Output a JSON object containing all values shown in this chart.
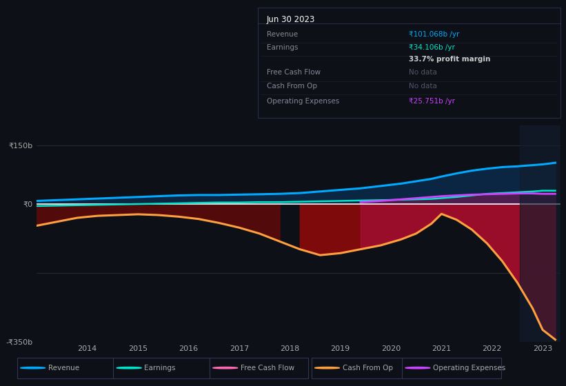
{
  "bg_color": "#0d1117",
  "plot_bg_color": "#0d1117",
  "ylim": [
    -350,
    200
  ],
  "ytick_positions": [
    -350,
    0,
    150
  ],
  "ytick_labels": [
    "-₹350b",
    "₹0",
    "₹150b"
  ],
  "x_years": [
    2013.0,
    2013.4,
    2013.8,
    2014.2,
    2014.6,
    2015.0,
    2015.4,
    2015.8,
    2016.2,
    2016.6,
    2017.0,
    2017.4,
    2017.8,
    2018.2,
    2018.6,
    2019.0,
    2019.4,
    2019.8,
    2020.2,
    2020.5,
    2020.8,
    2021.0,
    2021.3,
    2021.6,
    2021.9,
    2022.2,
    2022.5,
    2022.8,
    2023.0,
    2023.25
  ],
  "revenue": [
    8,
    10,
    12,
    14,
    16,
    18,
    20,
    22,
    23,
    23,
    24,
    25,
    26,
    28,
    32,
    36,
    40,
    46,
    52,
    58,
    64,
    70,
    78,
    85,
    90,
    94,
    96,
    99,
    101,
    105
  ],
  "earnings": [
    -5,
    -4,
    -3,
    -2,
    -1,
    0,
    1,
    2,
    3,
    4,
    4,
    5,
    5,
    6,
    7,
    8,
    9,
    10,
    11,
    12,
    13,
    15,
    18,
    22,
    26,
    28,
    30,
    32,
    34,
    34
  ],
  "cash_from_op": [
    -55,
    -45,
    -35,
    -30,
    -28,
    -26,
    -28,
    -32,
    -38,
    -48,
    -60,
    -75,
    -95,
    -115,
    -130,
    -125,
    -115,
    -105,
    -90,
    -75,
    -50,
    -25,
    -40,
    -65,
    -100,
    -145,
    -200,
    -265,
    -320,
    -345
  ],
  "operating_expenses": [
    null,
    null,
    null,
    null,
    null,
    null,
    null,
    null,
    null,
    null,
    null,
    null,
    null,
    null,
    null,
    null,
    5,
    8,
    12,
    15,
    18,
    20,
    22,
    24,
    25,
    26,
    27,
    27,
    26,
    26
  ],
  "free_cash_flow": null,
  "x_tick_positions": [
    2014,
    2015,
    2016,
    2017,
    2018,
    2019,
    2020,
    2021,
    2022,
    2023
  ],
  "x_tick_labels": [
    "2014",
    "2015",
    "2016",
    "2017",
    "2018",
    "2019",
    "2020",
    "2021",
    "2022",
    "2023"
  ],
  "legend_items": [
    {
      "label": "Revenue",
      "color": "#00aaff"
    },
    {
      "label": "Earnings",
      "color": "#00e5cc"
    },
    {
      "label": "Free Cash Flow",
      "color": "#ff69b4"
    },
    {
      "label": "Cash From Op",
      "color": "#ffa040"
    },
    {
      "label": "Operating Expenses",
      "color": "#cc44ff"
    }
  ],
  "revenue_color": "#00aaff",
  "earnings_color": "#00e5cc",
  "cash_from_op_color": "#ffa040",
  "op_exp_color": "#cc44ff",
  "zero_line_color": "#ffffff",
  "grid_color": "#2a2a3a",
  "text_color": "#aaaaaa",
  "info_box": {
    "date": "Jun 30 2023",
    "date_color": "#ffffff",
    "bg_color": "#0d1420",
    "border_color": "#2a2a4a",
    "rows": [
      {
        "label": "Revenue",
        "value": "₹101.068b /yr",
        "value_color": "#00aaff"
      },
      {
        "label": "Earnings",
        "value": "₹34.106b /yr",
        "value_color": "#00e5cc"
      },
      {
        "label": "",
        "value": "33.7% profit margin",
        "value_color": "#cccccc"
      },
      {
        "label": "Free Cash Flow",
        "value": "No data",
        "value_color": "#555566"
      },
      {
        "label": "Cash From Op",
        "value": "No data",
        "value_color": "#555566"
      },
      {
        "label": "Operating Expenses",
        "value": "₹25.751b /yr",
        "value_color": "#cc44ff"
      }
    ]
  }
}
